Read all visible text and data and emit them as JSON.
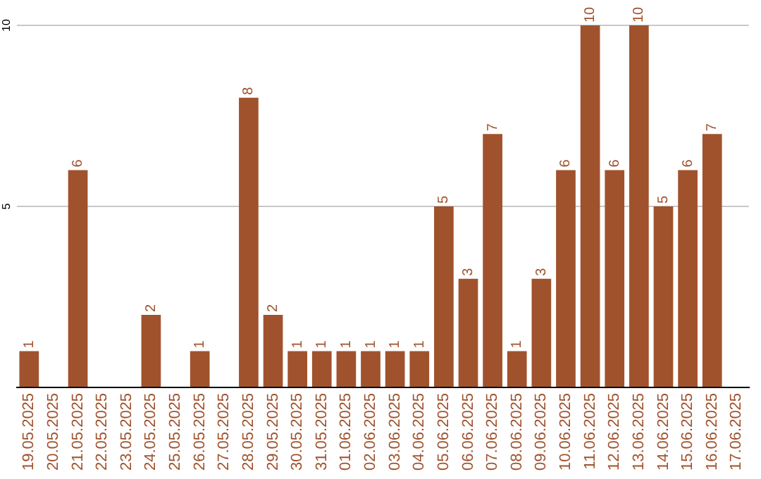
{
  "chart_data": {
    "type": "bar",
    "categories": [
      "19.05.2025",
      "20.05.2025",
      "21.05.2025",
      "22.05.2025",
      "23.05.2025",
      "24.05.2025",
      "25.05.2025",
      "26.05.2025",
      "27.05.2025",
      "28.05.2025",
      "29.05.2025",
      "30.05.2025",
      "31.05.2025",
      "01.06.2025",
      "02.06.2025",
      "03.06.2025",
      "04.06.2025",
      "05.06.2025",
      "06.06.2025",
      "07.06.2025",
      "08.06.2025",
      "09.06.2025",
      "10.06.2025",
      "11.06.2025",
      "12.06.2025",
      "13.06.2025",
      "14.06.2025",
      "15.06.2025",
      "16.06.2025",
      "17.06.2025"
    ],
    "values": [
      1,
      0,
      6,
      0,
      0,
      2,
      0,
      1,
      0,
      8,
      2,
      1,
      1,
      1,
      1,
      1,
      1,
      5,
      3,
      7,
      1,
      3,
      6,
      10,
      6,
      10,
      5,
      6,
      7,
      0
    ],
    "value_labels": [
      "1",
      null,
      "6",
      null,
      null,
      "2",
      null,
      "1",
      null,
      "8",
      "2",
      "1",
      "1",
      "1",
      "1",
      "1",
      "1",
      "5",
      "3",
      "7",
      "1",
      "3",
      "6",
      "10",
      "6",
      "10",
      "5",
      "6",
      "7",
      null
    ],
    "color": "#a0522d",
    "ylim": [
      0,
      10
    ],
    "yticks": [
      {
        "value": 0,
        "label": null
      },
      5,
      10
    ],
    "grid": "y",
    "legend": false
  }
}
